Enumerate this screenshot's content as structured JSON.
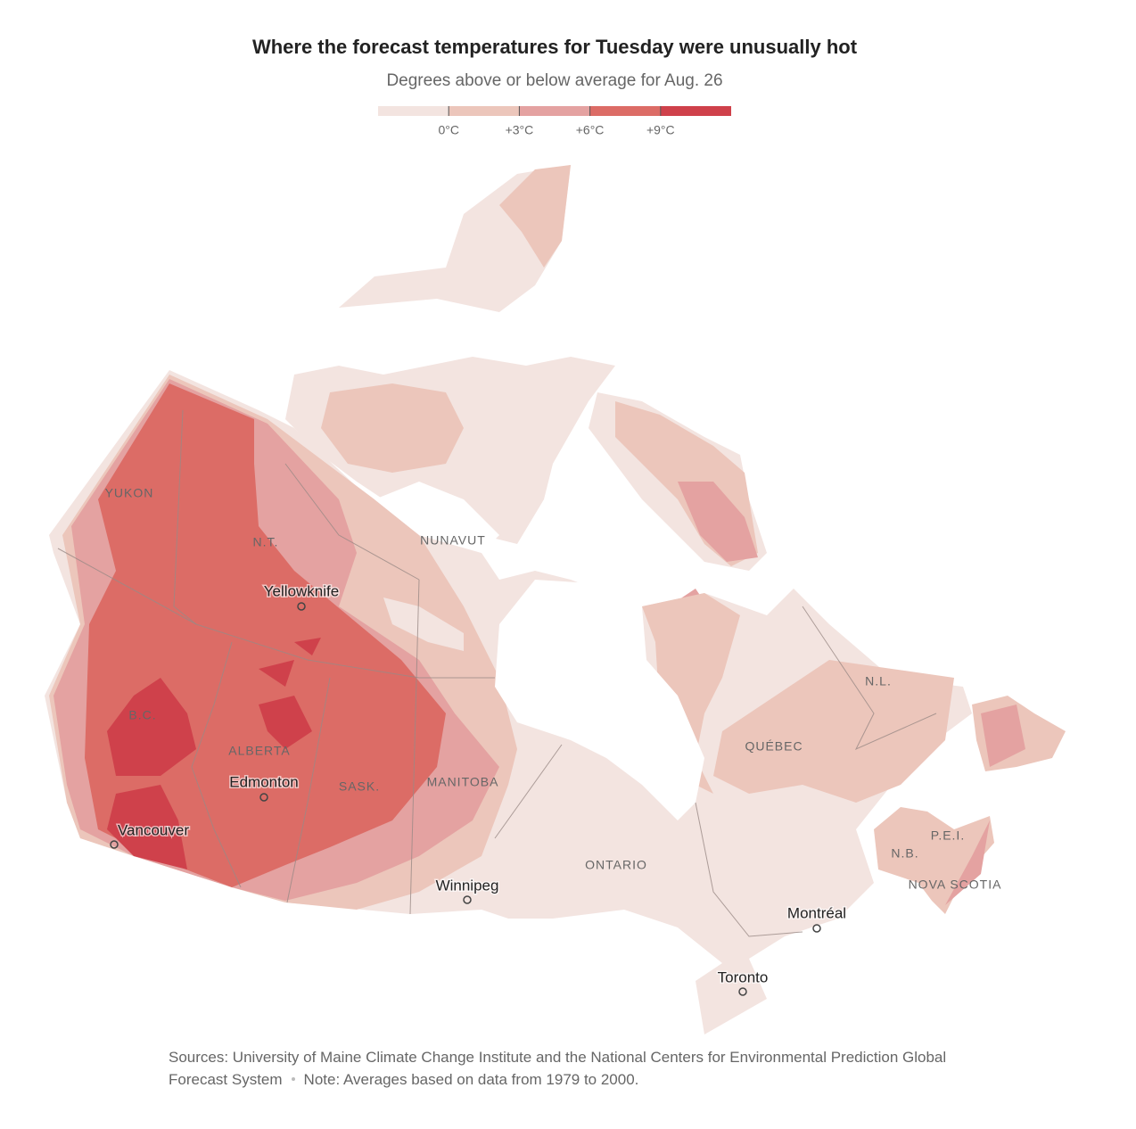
{
  "header": {
    "title": "Where the forecast temperatures for Tuesday were unusually hot",
    "subtitle": "Degrees above or below average for Aug. 26"
  },
  "legend": {
    "range": [
      -3,
      12
    ],
    "ticks": [
      {
        "value": 0,
        "label": "0°C"
      },
      {
        "value": 3,
        "label": "+3°C"
      },
      {
        "value": 6,
        "label": "+6°C"
      },
      {
        "value": 9,
        "label": "+9°C"
      }
    ],
    "colors": [
      "#f3e4e0",
      "#ecc6bb",
      "#e4a2a1",
      "#dc6c66",
      "#cf414b"
    ]
  },
  "regions": [
    "YUKON",
    "N.T.",
    "NUNAVUT",
    "B.C.",
    "ALBERTA",
    "SASK.",
    "MANITOBA",
    "ONTARIO",
    "QUÉBEC",
    "N.L.",
    "P.E.I.",
    "N.B.",
    "NOVA SCOTIA"
  ],
  "cities": [
    "Yellowknife",
    "Edmonton",
    "Vancouver",
    "Winnipeg",
    "Montréal",
    "Toronto"
  ],
  "footer": {
    "sources": "Sources: University of Maine Climate Change Institute and the National Centers for Environmental Prediction Global Forecast System",
    "note": "Note: Averages based on data from 1979 to 2000."
  }
}
